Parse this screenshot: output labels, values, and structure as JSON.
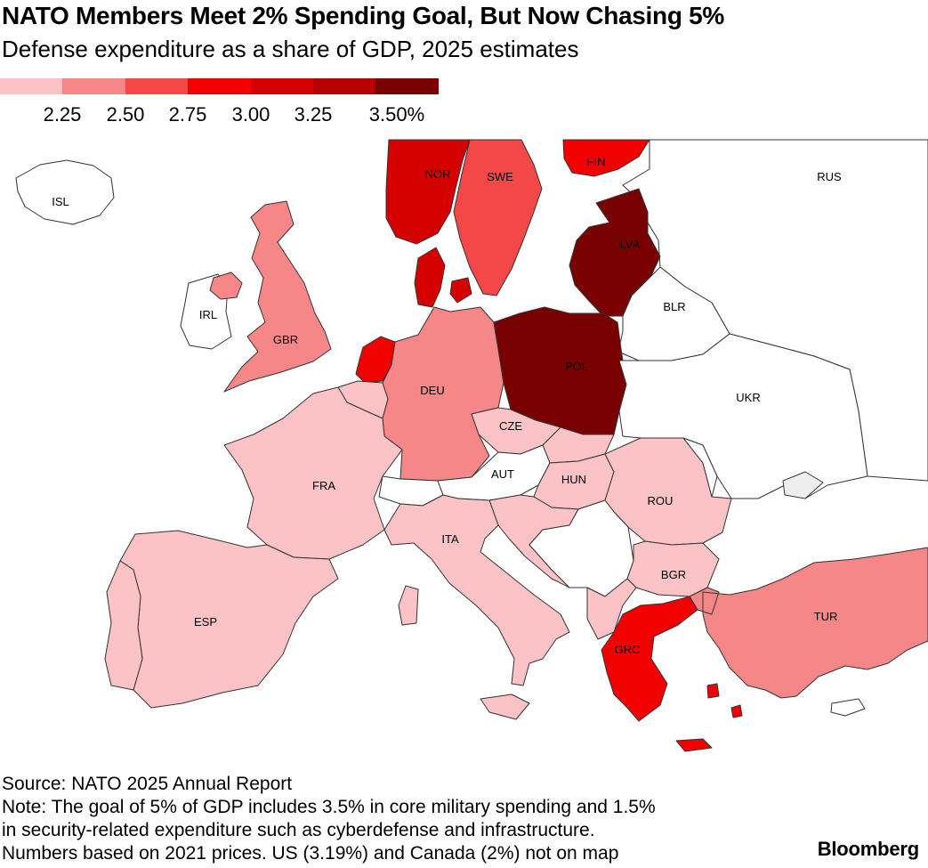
{
  "header": {
    "title": "NATO Members Meet 2% Spending Goal, But Now Chasing 5%",
    "subtitle": "Defense expenditure as a share of GDP, 2025 estimates"
  },
  "legend": {
    "colors": [
      "#fbc3c5",
      "#f58788",
      "#f44848",
      "#f20000",
      "#d50000",
      "#b80000",
      "#790000"
    ],
    "labels": [
      "2.25",
      "2.50",
      "2.75",
      "3.00",
      "3.25",
      "3.50%"
    ]
  },
  "map": {
    "countries": [
      {
        "code": "ISL",
        "fill": "#ffffff"
      },
      {
        "code": "NOR",
        "fill": "#d50000"
      },
      {
        "code": "SWE",
        "fill": "#f44848"
      },
      {
        "code": "FIN",
        "fill": "#f20000"
      },
      {
        "code": "RUS",
        "fill": "#ffffff"
      },
      {
        "code": "IRL",
        "fill": "#ffffff"
      },
      {
        "code": "GBR",
        "fill": "#f58788"
      },
      {
        "code": "LVA",
        "fill": "#790000"
      },
      {
        "code": "BLR",
        "fill": "#ffffff"
      },
      {
        "code": "DEU",
        "fill": "#f58788"
      },
      {
        "code": "POL",
        "fill": "#790000"
      },
      {
        "code": "UKR",
        "fill": "#ffffff"
      },
      {
        "code": "CZE",
        "fill": "#fbc3c5"
      },
      {
        "code": "FRA",
        "fill": "#fbc3c5"
      },
      {
        "code": "AUT",
        "fill": "#ffffff"
      },
      {
        "code": "HUN",
        "fill": "#fbc3c5"
      },
      {
        "code": "ROU",
        "fill": "#fbc3c5"
      },
      {
        "code": "ITA",
        "fill": "#fbc3c5"
      },
      {
        "code": "BGR",
        "fill": "#fbc3c5"
      },
      {
        "code": "ESP",
        "fill": "#fbc3c5"
      },
      {
        "code": "TUR",
        "fill": "#f58788"
      },
      {
        "code": "GRC",
        "fill": "#f20000"
      }
    ]
  },
  "footer": {
    "source": "Source: NATO 2025 Annual Report",
    "note_line1": "Note: The goal of 5% of GDP includes 3.5% in core military spending and 1.5%",
    "note_line2": "in security-related expenditure such as cyberdefense and infrastructure.",
    "note_line3": "Numbers based on 2021 prices. US (3.19%) and Canada (2%) not on map",
    "brand": "Bloomberg"
  }
}
